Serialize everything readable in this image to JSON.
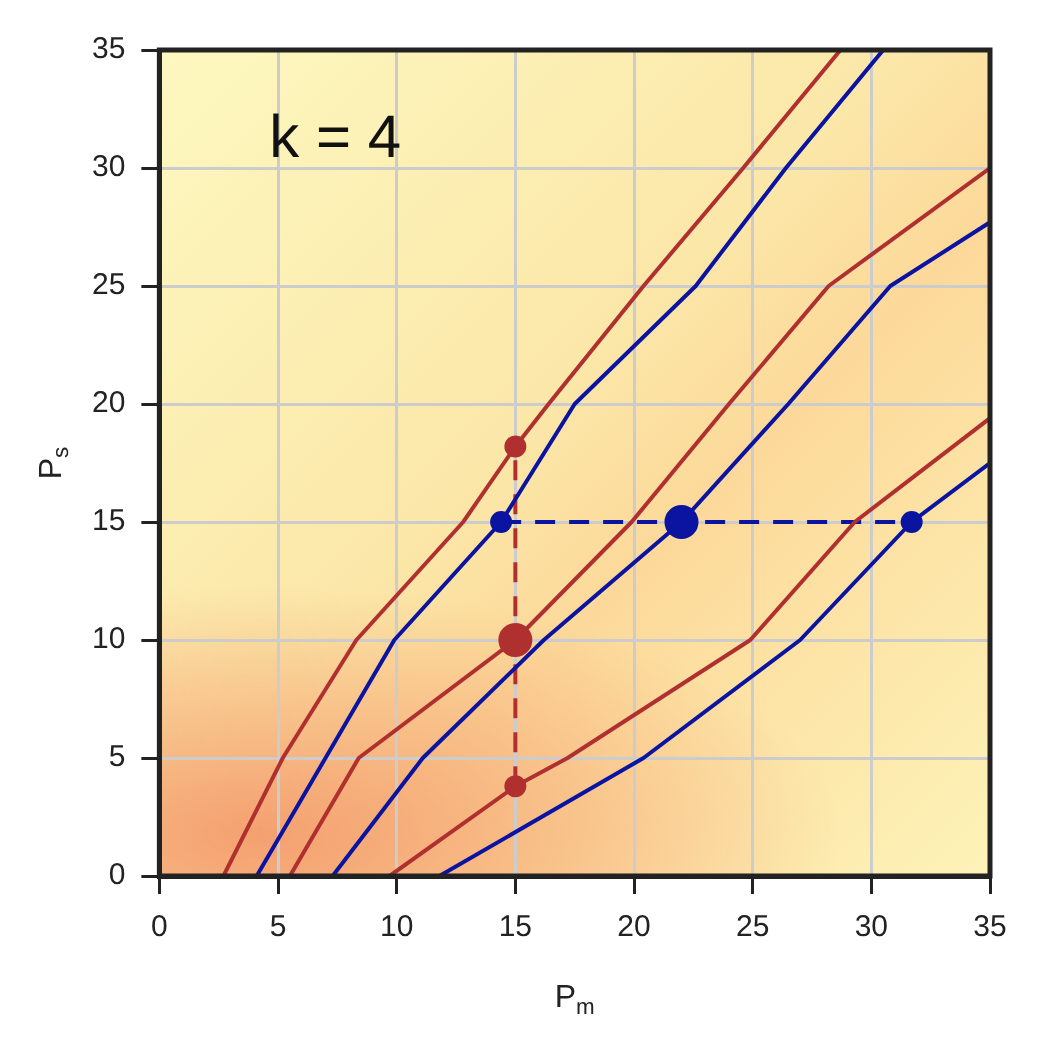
{
  "chart_data": {
    "type": "line",
    "xlabel": "P$_{m}$",
    "ylabel": "P$_{s}$",
    "annotations": [
      "k = 4"
    ],
    "xlim": [
      0,
      35
    ],
    "ylim": [
      0,
      35
    ],
    "xticks": [
      0,
      5,
      10,
      15,
      20,
      25,
      30,
      35
    ],
    "yticks": [
      0,
      5,
      10,
      15,
      20,
      25,
      30,
      35
    ],
    "grid": true,
    "legend": false,
    "marker": "none",
    "line_style": "solid",
    "series": [
      {
        "color": "#b03030",
        "x": [
          2.7,
          5.2,
          8.3,
          12.8,
          15,
          16.4,
          20.4,
          24.6,
          28.7
        ],
        "values": [
          0,
          5,
          10,
          15,
          18.2,
          20,
          25,
          30,
          35
        ]
      },
      {
        "color": "#0a14a0",
        "x": [
          4.1,
          7.0,
          9.9,
          14.4,
          17.5,
          22.6,
          26.4,
          30.5
        ],
        "values": [
          0,
          5,
          10,
          15,
          20,
          25,
          30,
          35
        ]
      },
      {
        "color": "#b03030",
        "x": [
          5.5,
          8.4,
          15,
          19.9,
          24.0,
          28.2,
          35
        ],
        "values": [
          0,
          5,
          10,
          15,
          20,
          25,
          30
        ]
      },
      {
        "color": "#0a14a0",
        "x": [
          7.3,
          11.1,
          16.2,
          22,
          26.5,
          30.8,
          35
        ],
        "values": [
          0,
          5,
          10,
          15,
          20,
          25,
          27.7
        ]
      },
      {
        "color": "#b03030",
        "x": [
          9.7,
          15,
          17.2,
          24.9,
          29.3,
          35
        ],
        "values": [
          0,
          3.8,
          5,
          10,
          15,
          19.4
        ]
      },
      {
        "color": "#0a14a0",
        "x": [
          11.8,
          20.4,
          27.0,
          31.7,
          35
        ],
        "values": [
          0,
          5,
          10,
          15,
          17.5
        ]
      },
      {
        "color": "#b03030",
        "line_style": "dashed",
        "x": [
          15,
          15
        ],
        "values": [
          3.8,
          18.2
        ]
      },
      {
        "color": "#0a14a0",
        "line_style": "dashed",
        "x": [
          14.4,
          31.7
        ],
        "values": [
          15,
          15
        ]
      },
      {
        "type": "scatter",
        "marker": "circle",
        "color": "#b03030",
        "x": [
          15,
          15
        ],
        "values": [
          18.2,
          3.8
        ]
      },
      {
        "type": "scatter",
        "marker": "circle",
        "color": "#b03030",
        "x": [
          15
        ],
        "values": [
          10
        ]
      },
      {
        "type": "scatter",
        "marker": "circle",
        "color": "#0a14a0",
        "x": [
          14.4,
          31.7
        ],
        "values": [
          15,
          15
        ]
      },
      {
        "type": "scatter",
        "marker": "circle",
        "color": "#0a14a0",
        "x": [
          22
        ],
        "values": [
          15
        ]
      }
    ]
  }
}
